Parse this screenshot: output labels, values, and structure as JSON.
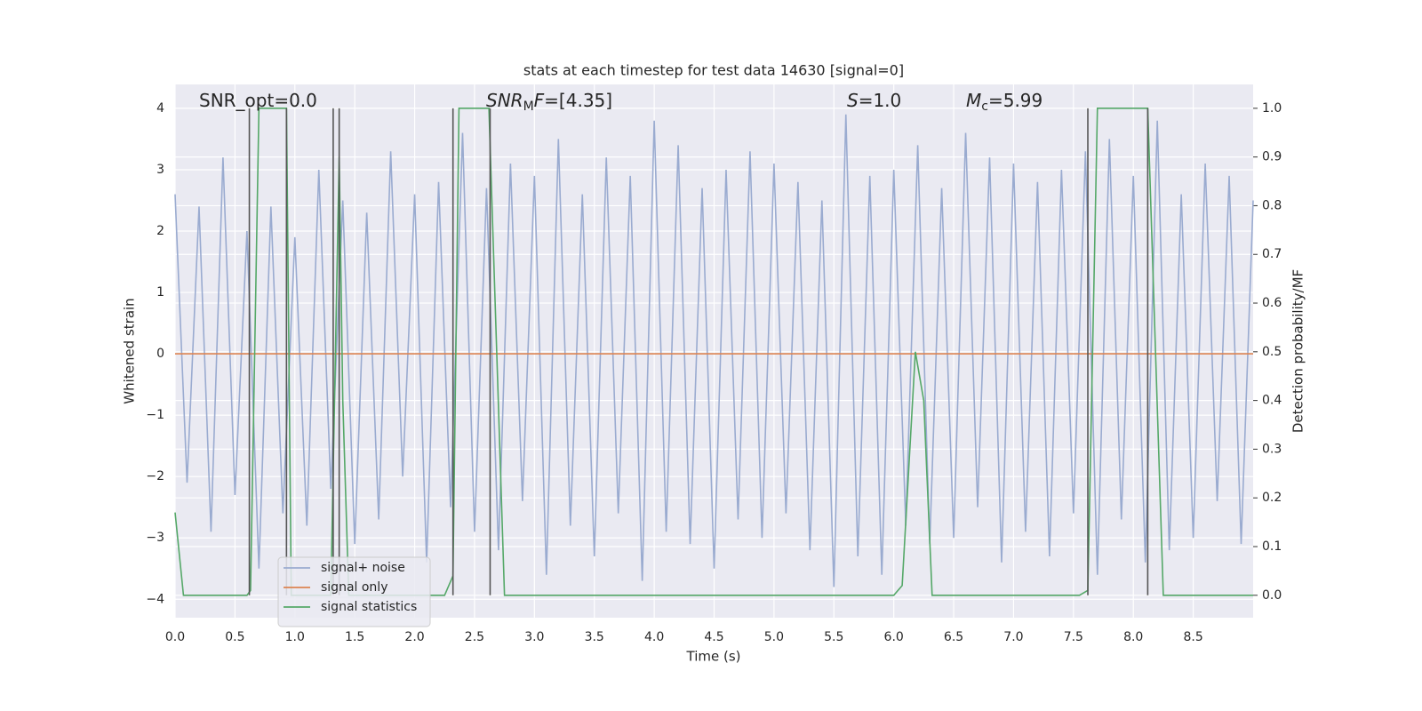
{
  "chart_data": {
    "type": "line",
    "title": "stats at each timestep for test data 14630 [signal=0]",
    "x_label": "Time (s)",
    "y_label": "Whitened strain",
    "y2_label": "Detection probability/MF",
    "xlim": [
      0,
      9.0
    ],
    "ylim": [
      -4.3,
      4.39
    ],
    "y2lim": [
      -0.046,
      1.049
    ],
    "xticks": [
      {
        "value": 0,
        "label": "0.0"
      },
      0.5,
      {
        "value": 1,
        "label": "1.0"
      },
      1.5,
      {
        "value": 2,
        "label": "2.0"
      },
      2.5,
      {
        "value": 3,
        "label": "3.0"
      },
      3.5,
      {
        "value": 4,
        "label": "4.0"
      },
      4.5,
      {
        "value": 5,
        "label": "5.0"
      },
      5.5,
      {
        "value": 6,
        "label": "6.0"
      },
      6.5,
      {
        "value": 7,
        "label": "7.0"
      },
      7.5,
      {
        "value": 8,
        "label": "8.0"
      },
      8.5
    ],
    "yticks": [
      {
        "value": -4,
        "label": "−4"
      },
      {
        "value": -3,
        "label": "−3"
      },
      {
        "value": -2,
        "label": "−2"
      },
      {
        "value": -1,
        "label": "−1"
      },
      0,
      1,
      2,
      3,
      4
    ],
    "y2ticks": [
      {
        "value": 0,
        "label": "0.0"
      },
      0.1,
      0.2,
      0.3,
      0.4,
      0.5,
      0.6,
      0.7,
      0.8,
      0.9,
      {
        "value": 1,
        "label": "1.0"
      }
    ],
    "grid": true,
    "legend": "lower left",
    "series": [
      {
        "name": "signal+ noise",
        "color": "#9aabd0",
        "x": [
          0.0,
          0.1,
          0.2,
          0.3,
          0.4,
          0.5,
          0.6,
          0.7,
          0.8,
          0.9,
          1.0,
          1.1,
          1.2,
          1.3,
          1.4,
          1.5,
          1.6,
          1.7,
          1.8,
          1.9,
          2.0,
          2.1,
          2.2,
          2.3,
          2.4,
          2.5,
          2.6,
          2.7,
          2.8,
          2.9,
          3.0,
          3.1,
          3.2,
          3.3,
          3.4,
          3.5,
          3.6,
          3.7,
          3.8,
          3.9,
          4.0,
          4.1,
          4.2,
          4.3,
          4.4,
          4.5,
          4.6,
          4.7,
          4.8,
          4.9,
          5.0,
          5.1,
          5.2,
          5.3,
          5.4,
          5.5,
          5.6,
          5.7,
          5.8,
          5.9,
          6.0,
          6.1,
          6.2,
          6.3,
          6.4,
          6.5,
          6.6,
          6.7,
          6.8,
          6.9,
          7.0,
          7.1,
          7.2,
          7.3,
          7.4,
          7.5,
          7.6,
          7.7,
          7.8,
          7.9,
          8.0,
          8.1,
          8.2,
          8.3,
          8.4,
          8.5,
          8.6,
          8.7,
          8.8,
          8.9,
          9.0
        ],
        "values": [
          2.6,
          -2.1,
          2.4,
          -2.9,
          3.2,
          -2.3,
          2.0,
          -3.5,
          2.4,
          -2.6,
          1.9,
          -2.8,
          3.0,
          -2.2,
          2.5,
          -3.1,
          2.3,
          -2.7,
          3.3,
          -2.0,
          2.6,
          -3.4,
          2.8,
          -2.5,
          3.6,
          -2.9,
          2.7,
          -3.2,
          3.1,
          -2.4,
          2.9,
          -3.6,
          3.5,
          -2.8,
          2.6,
          -3.3,
          3.2,
          -2.6,
          2.9,
          -3.7,
          3.8,
          -2.9,
          3.4,
          -3.1,
          2.7,
          -3.5,
          3.0,
          -2.7,
          3.3,
          -3.0,
          3.1,
          -2.6,
          2.8,
          -3.2,
          2.5,
          -3.8,
          3.9,
          -3.3,
          2.9,
          -3.6,
          3.0,
          -2.8,
          3.4,
          -3.1,
          2.7,
          -3.0,
          3.6,
          -2.5,
          3.2,
          -3.4,
          3.1,
          -2.9,
          2.8,
          -3.3,
          3.0,
          -2.6,
          3.3,
          -3.6,
          3.5,
          -2.7,
          2.9,
          -3.4,
          3.8,
          -3.2,
          2.6,
          -3.0,
          3.1,
          -2.4,
          2.9,
          -3.1,
          2.5
        ]
      },
      {
        "name": "signal only",
        "color": "#dd8452",
        "x": [
          0.0,
          9.0
        ],
        "values": [
          0,
          0
        ]
      },
      {
        "name": "signal statistics",
        "color": "#55a868",
        "axis": "y2",
        "x": [
          0.0,
          0.07,
          0.15,
          0.6,
          0.63,
          0.7,
          0.93,
          0.97,
          1.3,
          1.37,
          1.4,
          1.45,
          2.25,
          2.32,
          2.37,
          2.62,
          2.75,
          6.0,
          6.07,
          6.18,
          6.25,
          6.32,
          7.55,
          7.62,
          7.7,
          8.12,
          8.25,
          8.3,
          9.0
        ],
        "values": [
          0.17,
          0.0,
          0.0,
          0.0,
          0.01,
          1.0,
          1.0,
          0.0,
          0.0,
          0.9,
          0.4,
          0.0,
          0.0,
          0.04,
          1.0,
          1.0,
          0.0,
          0.0,
          0.02,
          0.5,
          0.4,
          0.0,
          0.0,
          0.01,
          1.0,
          1.0,
          0.0,
          0.0,
          0.0
        ]
      }
    ],
    "vlines": {
      "x": [
        0.62,
        0.93,
        1.32,
        1.37,
        2.32,
        2.63,
        7.62,
        8.12
      ],
      "ymin": 0,
      "ymax": 1,
      "color": "#555555"
    },
    "annotations": [
      [
        {
          "text": "SNR_opt=0.0",
          "style": "normal"
        }
      ],
      [
        {
          "text": "SNR",
          "style": "italic"
        },
        {
          "text": "M",
          "style": "sub"
        },
        {
          "text": "F",
          "style": "italic"
        },
        {
          "text": "=[4.35]",
          "style": "normal"
        }
      ],
      [
        {
          "text": "S",
          "style": "italic"
        },
        {
          "text": "=1.0",
          "style": "normal"
        }
      ],
      [
        {
          "text": "M",
          "style": "italic"
        },
        {
          "text": "c",
          "style": "sub"
        },
        {
          "text": "=5.99",
          "style": "normal"
        }
      ]
    ]
  }
}
